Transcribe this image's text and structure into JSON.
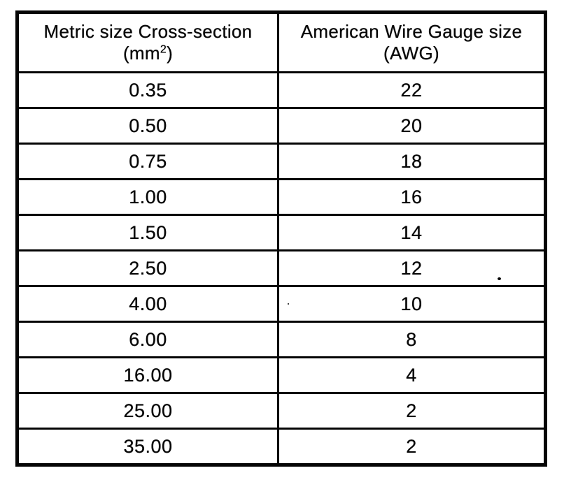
{
  "document": {
    "background_color": "#ffffff",
    "ink_color": "#050505"
  },
  "table": {
    "header": {
      "metric": {
        "line1": "Metric size Cross-section",
        "unit_pre": "(mm",
        "unit_sup": "2",
        "unit_post": ")"
      },
      "awg": {
        "line1": "American Wire Gauge size",
        "unit": "(AWG)"
      }
    },
    "rows": [
      {
        "metric": "0.35",
        "awg": "22"
      },
      {
        "metric": "0.50",
        "awg": "20"
      },
      {
        "metric": "0.75",
        "awg": "18"
      },
      {
        "metric": "1.00",
        "awg": "16"
      },
      {
        "metric": "1.50",
        "awg": "14"
      },
      {
        "metric": "2.50",
        "awg": "12"
      },
      {
        "metric": "4.00",
        "awg": "10"
      },
      {
        "metric": "6.00",
        "awg": "8"
      },
      {
        "metric": "16.00",
        "awg": "4"
      },
      {
        "metric": "25.00",
        "awg": "2"
      },
      {
        "metric": "35.00",
        "awg": "2"
      }
    ]
  },
  "chart_data": {
    "type": "table",
    "columns": [
      "Metric size Cross-section (mm2)",
      "American Wire Gauge size (AWG)"
    ],
    "rows": [
      [
        "0.35",
        "22"
      ],
      [
        "0.50",
        "20"
      ],
      [
        "0.75",
        "18"
      ],
      [
        "1.00",
        "16"
      ],
      [
        "1.50",
        "14"
      ],
      [
        "2.50",
        "12"
      ],
      [
        "4.00",
        "10"
      ],
      [
        "6.00",
        "8"
      ],
      [
        "16.00",
        "4"
      ],
      [
        "25.00",
        "2"
      ],
      [
        "35.00",
        "2"
      ]
    ]
  }
}
